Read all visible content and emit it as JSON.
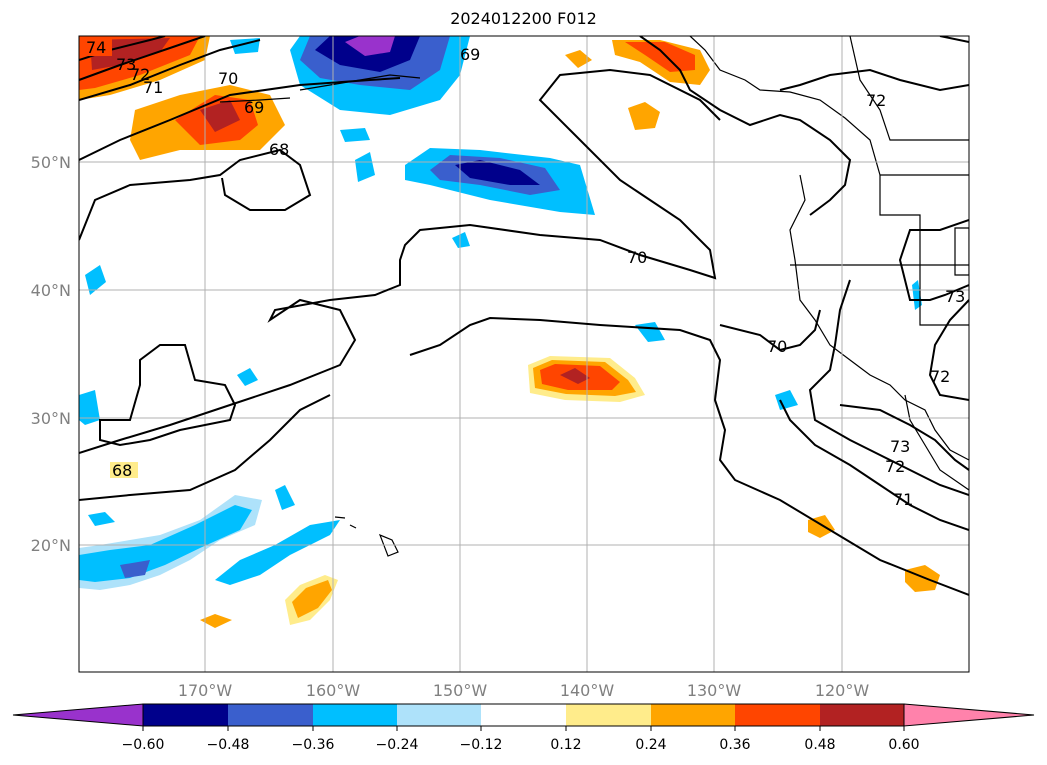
{
  "title": "2024012200 F012",
  "map": {
    "lat_labels": [
      "50°N",
      "40°N",
      "30°N",
      "20°N"
    ],
    "lon_labels": [
      "170°W",
      "160°W",
      "150°W",
      "140°W",
      "130°W",
      "120°W"
    ],
    "contour_labels": [
      "74",
      "73",
      "72",
      "71",
      "70",
      "69",
      "69",
      "68",
      "72",
      "70",
      "70",
      "73",
      "72",
      "68",
      "73",
      "72",
      "71"
    ]
  },
  "colorbar": {
    "ticks": [
      "−0.60",
      "−0.48",
      "−0.36",
      "−0.24",
      "−0.12",
      "0.12",
      "0.24",
      "0.36",
      "0.48",
      "0.60"
    ],
    "colors": [
      "#9932cc",
      "#00008b",
      "#3a5fcd",
      "#00bfff",
      "#aee2fa",
      "#ffffff",
      "#ffec8b",
      "#ffa500",
      "#ff4500",
      "#b22222",
      "#ff82ab"
    ]
  }
}
